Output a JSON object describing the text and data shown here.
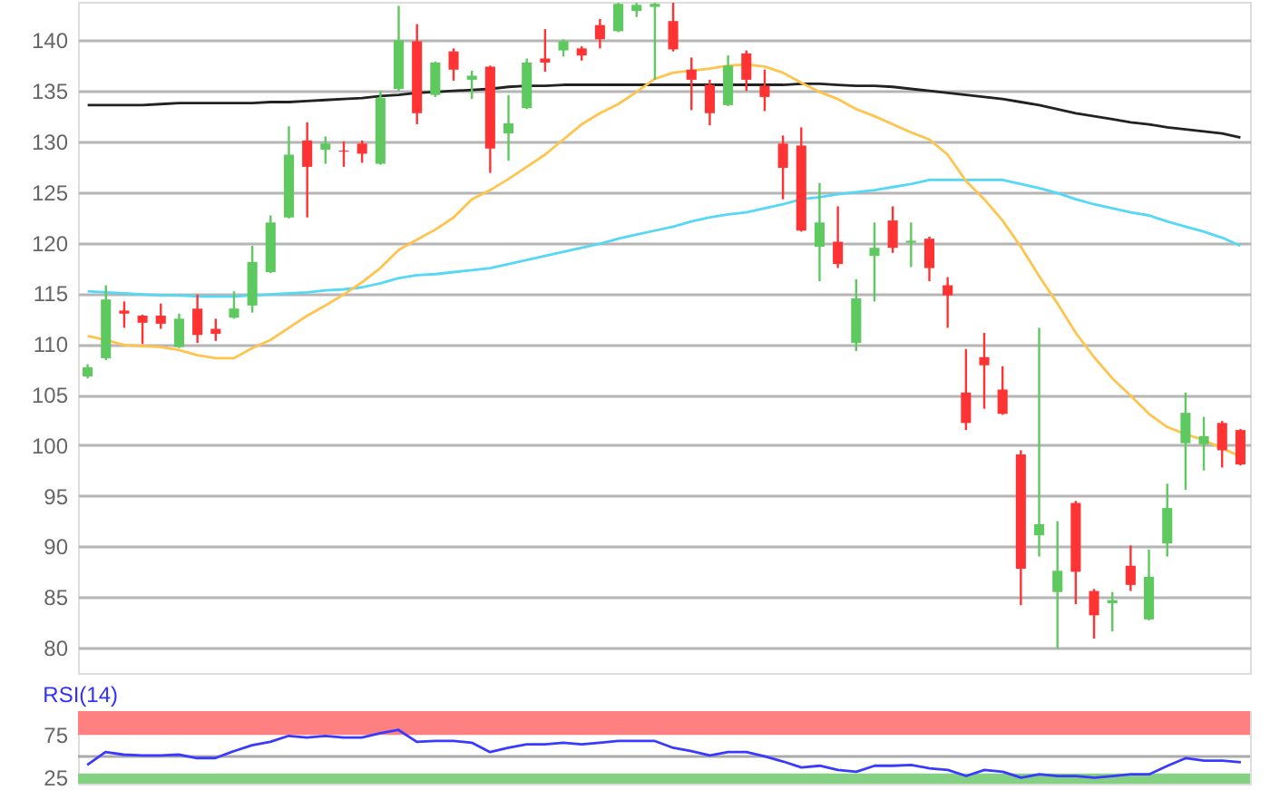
{
  "chart_data": [
    {
      "type": "candlestick",
      "categories": [
        null,
        null,
        null,
        null,
        null,
        null,
        null,
        null,
        null,
        null,
        null,
        null,
        null,
        null,
        null,
        null,
        null,
        null,
        null,
        null,
        null,
        null,
        null,
        null,
        null,
        null,
        null,
        null,
        null,
        null,
        null,
        null,
        null,
        null,
        null,
        null,
        null,
        null,
        null,
        null,
        null,
        null,
        null,
        null,
        null,
        null,
        null,
        null,
        null,
        null,
        null,
        null,
        null,
        null,
        null,
        null,
        null,
        null,
        null,
        null,
        null,
        null,
        null,
        null
      ],
      "ohlc": [
        [
          106.8,
          108.0,
          106.6,
          107.7
        ],
        [
          108.6,
          115.8,
          108.4,
          114.4
        ],
        [
          113.3,
          114.2,
          111.6,
          113.0
        ],
        [
          112.8,
          112.9,
          110.0,
          112.1
        ],
        [
          112.8,
          114.0,
          111.5,
          112.0
        ],
        [
          109.7,
          113.0,
          109.6,
          112.5
        ],
        [
          113.5,
          114.9,
          110.1,
          110.9
        ],
        [
          111.5,
          112.5,
          110.3,
          111.0
        ],
        [
          112.6,
          115.2,
          112.5,
          113.5
        ],
        [
          113.8,
          119.7,
          113.1,
          118.1
        ],
        [
          117.1,
          122.7,
          117.0,
          122.0
        ],
        [
          122.5,
          131.5,
          122.4,
          128.7
        ],
        [
          130.1,
          131.9,
          122.5,
          127.5
        ],
        [
          129.2,
          130.5,
          127.8,
          129.8
        ],
        [
          129.1,
          130.0,
          127.5,
          129.0
        ],
        [
          129.8,
          130.1,
          127.9,
          128.8
        ],
        [
          127.8,
          135.0,
          127.7,
          134.3
        ],
        [
          135.2,
          143.4,
          135.0,
          140.0
        ],
        [
          139.9,
          141.6,
          131.7,
          132.8
        ],
        [
          134.6,
          137.9,
          134.4,
          137.8
        ],
        [
          138.9,
          139.2,
          136.0,
          137.1
        ],
        [
          136.1,
          137.0,
          134.2,
          136.5
        ],
        [
          137.4,
          137.5,
          126.9,
          129.3
        ],
        [
          130.8,
          134.6,
          128.1,
          131.8
        ],
        [
          133.3,
          138.2,
          133.2,
          137.8
        ],
        [
          138.2,
          141.1,
          136.9,
          137.8
        ],
        [
          139.0,
          140.1,
          138.4,
          139.9
        ],
        [
          139.2,
          139.4,
          138.0,
          138.5
        ],
        [
          141.5,
          142.1,
          139.2,
          140.1
        ],
        [
          140.9,
          143.7,
          140.8,
          143.6
        ],
        [
          142.9,
          143.7,
          142.3,
          143.5
        ],
        [
          143.3,
          143.7,
          136.1,
          143.6
        ],
        [
          141.9,
          143.7,
          138.9,
          139.1
        ],
        [
          137.1,
          138.3,
          133.1,
          136.1
        ],
        [
          135.6,
          136.1,
          131.6,
          132.8
        ],
        [
          133.6,
          138.5,
          133.5,
          137.5
        ],
        [
          138.7,
          139.0,
          135.0,
          136.1
        ],
        [
          135.5,
          137.1,
          133.0,
          134.4
        ],
        [
          129.8,
          130.6,
          124.3,
          127.4
        ],
        [
          129.6,
          131.4,
          121.1,
          121.2
        ],
        [
          119.6,
          125.9,
          116.2,
          122.0
        ],
        [
          120.1,
          123.6,
          117.5,
          117.9
        ],
        [
          110.1,
          116.4,
          109.3,
          114.5
        ],
        [
          118.7,
          122.0,
          114.2,
          119.5
        ],
        [
          122.2,
          123.6,
          119.0,
          119.5
        ],
        [
          120.0,
          122.0,
          117.6,
          120.2
        ],
        [
          120.4,
          120.6,
          116.2,
          117.5
        ],
        [
          115.8,
          116.6,
          111.6,
          114.8
        ],
        [
          105.2,
          109.5,
          101.5,
          102.2
        ],
        [
          108.7,
          111.1,
          103.6,
          107.9
        ],
        [
          105.5,
          107.8,
          103.0,
          103.1
        ],
        [
          99.1,
          99.5,
          84.2,
          87.8
        ],
        [
          91.1,
          111.6,
          89.0,
          92.2
        ],
        [
          85.5,
          92.5,
          79.9,
          87.6
        ],
        [
          94.3,
          94.5,
          84.3,
          87.5
        ],
        [
          85.6,
          85.8,
          80.9,
          83.2
        ],
        [
          84.4,
          85.5,
          81.6,
          84.7
        ],
        [
          88.1,
          90.1,
          85.6,
          86.2
        ],
        [
          82.8,
          89.7,
          82.7,
          87.0
        ],
        [
          90.3,
          96.2,
          89.0,
          93.8
        ],
        [
          100.2,
          105.2,
          95.6,
          103.2
        ],
        [
          100.1,
          102.8,
          97.5,
          100.9
        ],
        [
          102.2,
          102.4,
          97.8,
          99.5
        ],
        [
          101.5,
          101.6,
          98.0,
          98.1
        ]
      ],
      "colors": [
        "#5ec95e",
        "#5ec95e",
        "#ff3333",
        "#ff3333",
        "#ff3333",
        "#5ec95e",
        "#ff3333",
        "#ff3333",
        "#5ec95e",
        "#5ec95e",
        "#5ec95e",
        "#5ec95e",
        "#ff3333",
        "#5ec95e",
        "#ff3333",
        "#ff3333",
        "#5ec95e",
        "#5ec95e",
        "#ff3333",
        "#5ec95e",
        "#ff3333",
        "#5ec95e",
        "#ff3333",
        "#5ec95e",
        "#5ec95e",
        "#ff3333",
        "#5ec95e",
        "#ff3333",
        "#ff3333",
        "#5ec95e",
        "#5ec95e",
        "#5ec95e",
        "#ff3333",
        "#ff3333",
        "#ff3333",
        "#5ec95e",
        "#ff3333",
        "#ff3333",
        "#ff3333",
        "#ff3333",
        "#5ec95e",
        "#ff3333",
        "#5ec95e",
        "#5ec95e",
        "#ff3333",
        "#5ec95e",
        "#ff3333",
        "#ff3333",
        "#ff3333",
        "#ff3333",
        "#ff3333",
        "#ff3333",
        "#5ec95e",
        "#5ec95e",
        "#ff3333",
        "#ff3333",
        "#5ec95e",
        "#ff3333",
        "#5ec95e",
        "#5ec95e",
        "#5ec95e",
        "#5ec95e",
        "#ff3333",
        "#ff3333"
      ],
      "series": [
        {
          "type": "line",
          "color": "#222222",
          "values": [
            133.6,
            133.6,
            133.6,
            133.6,
            133.7,
            133.8,
            133.8,
            133.8,
            133.8,
            133.8,
            133.9,
            133.9,
            134.0,
            134.1,
            134.2,
            134.3,
            134.5,
            134.6,
            134.8,
            134.9,
            135.0,
            135.1,
            135.2,
            135.4,
            135.5,
            135.5,
            135.6,
            135.6,
            135.6,
            135.6,
            135.6,
            135.6,
            135.6,
            135.6,
            135.6,
            135.6,
            135.6,
            135.6,
            135.6,
            135.7,
            135.7,
            135.6,
            135.5,
            135.5,
            135.4,
            135.2,
            135.0,
            134.8,
            134.6,
            134.4,
            134.2,
            133.9,
            133.6,
            133.2,
            132.8,
            132.5,
            132.2,
            131.9,
            131.7,
            131.4,
            131.2,
            131.0,
            130.8,
            130.4
          ]
        },
        {
          "type": "line",
          "color": "#55d8f5",
          "values": [
            115.2,
            115.1,
            115.0,
            114.9,
            114.8,
            114.8,
            114.7,
            114.7,
            114.7,
            114.8,
            114.9,
            115.0,
            115.1,
            115.3,
            115.4,
            115.6,
            116.0,
            116.5,
            116.8,
            116.9,
            117.1,
            117.3,
            117.5,
            117.9,
            118.3,
            118.7,
            119.1,
            119.5,
            119.9,
            120.4,
            120.8,
            121.2,
            121.6,
            122.1,
            122.5,
            122.8,
            123.0,
            123.4,
            123.8,
            124.3,
            124.5,
            124.8,
            125.0,
            125.2,
            125.5,
            125.8,
            126.2,
            126.2,
            126.2,
            126.2,
            126.2,
            125.8,
            125.4,
            124.9,
            124.3,
            123.8,
            123.4,
            123.0,
            122.7,
            122.1,
            121.6,
            121.1,
            120.5,
            119.7
          ]
        },
        {
          "type": "line",
          "color": "#ffc44d",
          "values": [
            110.8,
            110.4,
            109.9,
            109.8,
            109.7,
            109.4,
            108.9,
            108.6,
            108.6,
            109.6,
            110.4,
            111.6,
            112.8,
            113.8,
            114.9,
            116.1,
            117.5,
            119.3,
            120.3,
            121.3,
            122.5,
            124.3,
            125.2,
            126.3,
            127.5,
            128.7,
            130.2,
            131.7,
            132.8,
            133.7,
            134.9,
            136.2,
            136.8,
            137.0,
            137.2,
            137.5,
            137.6,
            137.4,
            136.8,
            135.8,
            134.9,
            134.2,
            133.2,
            132.5,
            131.7,
            130.9,
            130.2,
            128.7,
            126.1,
            124.3,
            122.2,
            119.6,
            116.7,
            114.0,
            111.1,
            108.7,
            106.6,
            104.9,
            103.1,
            101.8,
            101.1,
            100.5,
            99.7,
            98.9
          ]
        }
      ],
      "ylim": [
        77.5,
        143.8
      ],
      "yticks": [
        80,
        85,
        90,
        95,
        100,
        105,
        110,
        115,
        120,
        125,
        130,
        135,
        140
      ],
      "grid": "y",
      "tick_labels": "y"
    },
    {
      "type": "line",
      "title": "RSI(14)",
      "categories": [
        null,
        null,
        null,
        null,
        null,
        null,
        null,
        null,
        null,
        null,
        null,
        null,
        null,
        null,
        null,
        null,
        null,
        null,
        null,
        null,
        null,
        null,
        null,
        null,
        null,
        null,
        null,
        null,
        null,
        null,
        null,
        null,
        null,
        null,
        null,
        null,
        null,
        null,
        null,
        null,
        null,
        null,
        null,
        null,
        null,
        null,
        null,
        null,
        null,
        null,
        null,
        null,
        null,
        null,
        null,
        null,
        null,
        null,
        null,
        null,
        null,
        null,
        null,
        null
      ],
      "series": [
        {
          "color": "#3a3aff",
          "values": [
            40,
            55,
            52,
            51,
            51,
            52,
            48,
            48,
            56,
            63,
            67,
            74,
            72,
            74,
            72,
            72,
            77,
            81,
            67,
            68,
            68,
            66,
            55,
            60,
            64,
            64,
            66,
            64,
            66,
            68,
            68,
            68,
            60,
            56,
            51,
            55,
            55,
            50,
            44,
            37,
            39,
            34,
            32,
            39,
            39,
            40,
            36,
            34,
            27,
            34,
            32,
            25,
            29,
            27,
            27,
            25,
            27,
            29,
            29,
            39,
            48,
            45,
            45,
            43
          ]
        }
      ],
      "bands": [
        {
          "axis": "y",
          "from": 75,
          "to": 103,
          "color": "#ff8080"
        },
        {
          "axis": "y",
          "from": 18,
          "to": 30,
          "color": "#84d184"
        }
      ],
      "ref_lines": [
        {
          "axis": "y",
          "value": 50,
          "color": "#aaaaaa"
        }
      ],
      "ylim": [
        18,
        103
      ],
      "yticks": [
        25,
        75
      ],
      "tick_labels": "y"
    }
  ]
}
